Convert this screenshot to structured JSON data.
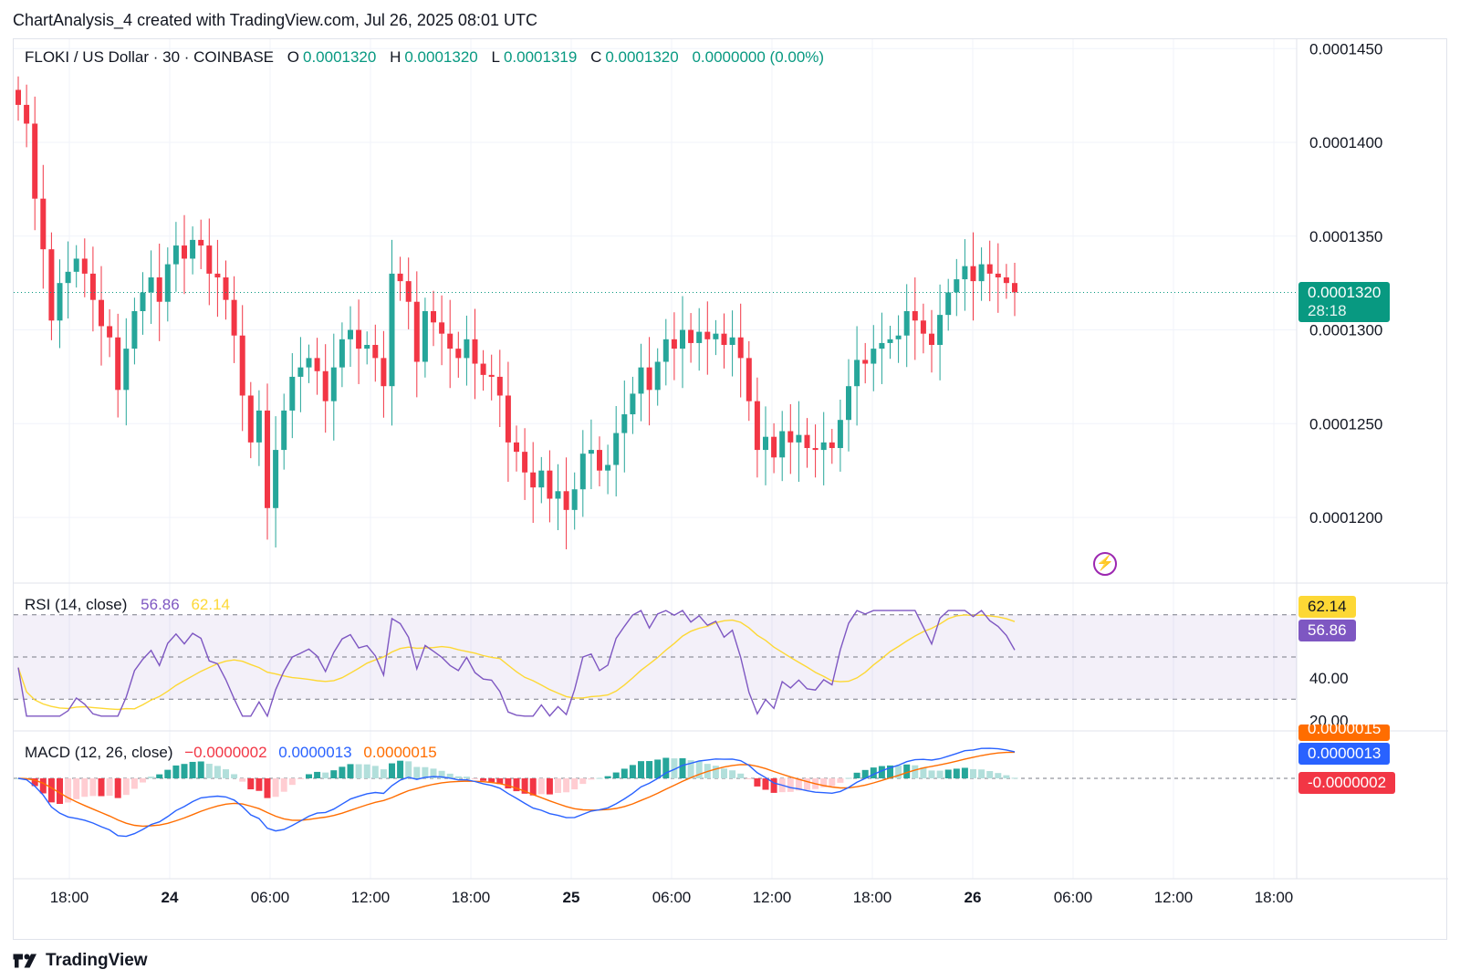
{
  "header": {
    "caption": "ChartAnalysis_4 created with TradingView.com, Jul 26, 2025 08:01 UTC"
  },
  "footer": {
    "brand": "TradingView"
  },
  "colors": {
    "up": "#26a69a",
    "down": "#f23645",
    "rsi": "#7e57c2",
    "rsi_ma": "#fdd835",
    "macd": "#2962ff",
    "signal": "#ff6d00"
  },
  "legend": {
    "symbol": "FLOKI / US Dollar · 30 · COINBASE",
    "o_label": "O",
    "o_value": "0.0001320",
    "h_label": "H",
    "h_value": "0.0001320",
    "l_label": "L",
    "l_value": "0.0001319",
    "c_label": "C",
    "c_value": "0.0001320",
    "change": "0.0000000 (0.00%)"
  },
  "rsi_legend": {
    "label": "RSI (14, close)",
    "value": "56.86",
    "ma_value": "62.14"
  },
  "macd_legend": {
    "label": "MACD (12, 26, close)",
    "hist": "−0.0000002",
    "macd": "0.0000013",
    "signal": "0.0000015"
  },
  "price_tag": {
    "value": "0.0001320",
    "countdown": "28:18"
  },
  "rsi_tags": {
    "ma": "62.14",
    "rsi": "56.86"
  },
  "macd_tags": {
    "signal": "0.0000015",
    "macd": "0.0000013",
    "hist": "-0.0000002"
  },
  "chart_data": {
    "type": "candlestick",
    "price_axis": {
      "ticks": [
        "0.0001450",
        "0.0001400",
        "0.0001350",
        "0.0001300",
        "0.0001250",
        "0.0001200"
      ],
      "range": [
        0.0001165,
        0.0001455
      ]
    },
    "time_axis": {
      "ticks": [
        "18:00",
        "24",
        "06:00",
        "12:00",
        "18:00",
        "25",
        "06:00",
        "12:00",
        "18:00",
        "26",
        "06:00",
        "12:00",
        "18:00"
      ]
    },
    "rsi_axis": {
      "ticks": [
        "40.00",
        "20.00"
      ],
      "range": [
        15,
        85
      ]
    },
    "close": [
      0.000142,
      0.000141,
      0.000137,
      0.0001343,
      0.0001305,
      0.0001325,
      0.0001331,
      0.0001338,
      0.000133,
      0.0001316,
      0.0001302,
      0.0001296,
      0.0001268,
      0.000129,
      0.000131,
      0.000132,
      0.0001328,
      0.0001315,
      0.0001335,
      0.0001345,
      0.0001338,
      0.0001348,
      0.0001345,
      0.000133,
      0.0001328,
      0.0001316,
      0.0001297,
      0.0001265,
      0.000124,
      0.0001257,
      0.0001205,
      0.0001236,
      0.0001257,
      0.0001275,
      0.000128,
      0.0001285,
      0.0001278,
      0.0001262,
      0.000128,
      0.0001295,
      0.00013,
      0.000129,
      0.0001292,
      0.0001285,
      0.000127,
      0.000133,
      0.0001326,
      0.0001315,
      0.0001283,
      0.000131,
      0.0001304,
      0.0001298,
      0.000129,
      0.0001285,
      0.0001295,
      0.0001282,
      0.0001276,
      0.0001275,
      0.0001265,
      0.000124,
      0.0001235,
      0.0001224,
      0.0001216,
      0.0001225,
      0.000121,
      0.0001214,
      0.0001204,
      0.0001215,
      0.0001234,
      0.0001236,
      0.0001225,
      0.0001228,
      0.0001245,
      0.0001255,
      0.0001266,
      0.000128,
      0.0001268,
      0.0001283,
      0.0001295,
      0.000129,
      0.00013,
      0.0001293,
      0.0001299,
      0.0001295,
      0.0001298,
      0.0001292,
      0.0001296,
      0.0001285,
      0.0001262,
      0.0001236,
      0.0001243,
      0.0001232,
      0.0001246,
      0.000124,
      0.0001244,
      0.0001237,
      0.0001236,
      0.000124,
      0.0001237,
      0.0001252,
      0.000127,
      0.0001284,
      0.0001282,
      0.000129,
      0.0001293,
      0.0001295,
      0.0001297,
      0.000131,
      0.0001305,
      0.0001298,
      0.0001292,
      0.0001308,
      0.000132,
      0.0001327,
      0.0001334,
      0.0001326,
      0.0001335,
      0.000133,
      0.0001328,
      0.0001325,
      0.000132
    ],
    "volatility_note_free": true
  }
}
